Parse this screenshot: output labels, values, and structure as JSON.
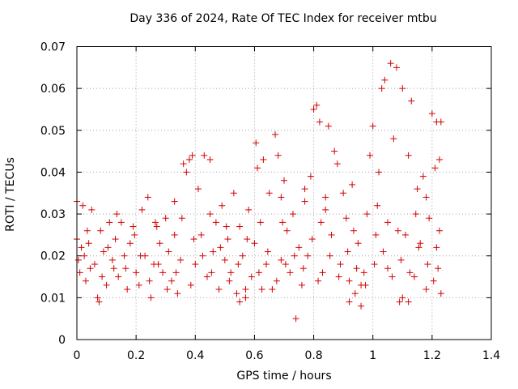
{
  "chart_data": {
    "type": "scatter",
    "title": "Day 336 of 2024, Rate Of TEC Index for receiver mtbu",
    "xlabel": "GPS time / hours",
    "ylabel": "ROTI / TECUs",
    "xlim": [
      0,
      1.4
    ],
    "ylim": [
      0,
      0.07
    ],
    "xticks": [
      "0",
      "0.2",
      "0.4",
      "0.6",
      "0.8",
      "1",
      "1.2",
      "1.4"
    ],
    "yticks": [
      "0",
      "0.01",
      "0.02",
      "0.03",
      "0.04",
      "0.05",
      "0.06",
      "0.07"
    ],
    "grid": true,
    "marker": "+",
    "color": "#d40000",
    "series": [
      {
        "name": "ROTI",
        "points": [
          [
            0.0,
            0.033
          ],
          [
            0.0,
            0.024
          ],
          [
            0.005,
            0.019
          ],
          [
            0.01,
            0.016
          ],
          [
            0.015,
            0.022
          ],
          [
            0.02,
            0.032
          ],
          [
            0.03,
            0.014
          ],
          [
            0.04,
            0.023
          ],
          [
            0.05,
            0.031
          ],
          [
            0.06,
            0.018
          ],
          [
            0.07,
            0.01
          ],
          [
            0.075,
            0.009
          ],
          [
            0.08,
            0.026
          ],
          [
            0.09,
            0.021
          ],
          [
            0.1,
            0.013
          ],
          [
            0.11,
            0.028
          ],
          [
            0.12,
            0.019
          ],
          [
            0.13,
            0.024
          ],
          [
            0.14,
            0.015
          ],
          [
            0.15,
            0.028
          ],
          [
            0.16,
            0.02
          ],
          [
            0.17,
            0.012
          ],
          [
            0.18,
            0.023
          ],
          [
            0.19,
            0.027
          ],
          [
            0.2,
            0.016
          ],
          [
            0.21,
            0.013
          ],
          [
            0.22,
            0.031
          ],
          [
            0.23,
            0.02
          ],
          [
            0.24,
            0.034
          ],
          [
            0.25,
            0.01
          ],
          [
            0.26,
            0.018
          ],
          [
            0.27,
            0.027
          ],
          [
            0.28,
            0.023
          ],
          [
            0.29,
            0.016
          ],
          [
            0.3,
            0.029
          ],
          [
            0.31,
            0.021
          ],
          [
            0.32,
            0.014
          ],
          [
            0.33,
            0.025
          ],
          [
            0.34,
            0.011
          ],
          [
            0.35,
            0.019
          ],
          [
            0.36,
            0.042
          ],
          [
            0.37,
            0.04
          ],
          [
            0.38,
            0.043
          ],
          [
            0.39,
            0.044
          ],
          [
            0.4,
            0.018
          ],
          [
            0.41,
            0.036
          ],
          [
            0.42,
            0.025
          ],
          [
            0.43,
            0.044
          ],
          [
            0.44,
            0.015
          ],
          [
            0.45,
            0.043
          ],
          [
            0.46,
            0.021
          ],
          [
            0.47,
            0.028
          ],
          [
            0.48,
            0.012
          ],
          [
            0.49,
            0.032
          ],
          [
            0.5,
            0.019
          ],
          [
            0.51,
            0.024
          ],
          [
            0.52,
            0.016
          ],
          [
            0.53,
            0.035
          ],
          [
            0.54,
            0.011
          ],
          [
            0.55,
            0.027
          ],
          [
            0.56,
            0.02
          ],
          [
            0.57,
            0.01
          ],
          [
            0.58,
            0.031
          ],
          [
            0.59,
            0.015
          ],
          [
            0.6,
            0.023
          ],
          [
            0.605,
            0.047
          ],
          [
            0.61,
            0.041
          ],
          [
            0.62,
            0.028
          ],
          [
            0.63,
            0.043
          ],
          [
            0.64,
            0.018
          ],
          [
            0.65,
            0.035
          ],
          [
            0.66,
            0.012
          ],
          [
            0.67,
            0.049
          ],
          [
            0.68,
            0.044
          ],
          [
            0.69,
            0.019
          ],
          [
            0.7,
            0.038
          ],
          [
            0.71,
            0.026
          ],
          [
            0.72,
            0.016
          ],
          [
            0.73,
            0.03
          ],
          [
            0.74,
            0.005
          ],
          [
            0.75,
            0.022
          ],
          [
            0.76,
            0.013
          ],
          [
            0.77,
            0.033
          ],
          [
            0.78,
            0.02
          ],
          [
            0.79,
            0.039
          ],
          [
            0.8,
            0.055
          ],
          [
            0.81,
            0.056
          ],
          [
            0.82,
            0.052
          ],
          [
            0.83,
            0.016
          ],
          [
            0.84,
            0.034
          ],
          [
            0.85,
            0.051
          ],
          [
            0.86,
            0.025
          ],
          [
            0.87,
            0.045
          ],
          [
            0.88,
            0.042
          ],
          [
            0.89,
            0.018
          ],
          [
            0.9,
            0.035
          ],
          [
            0.91,
            0.029
          ],
          [
            0.92,
            0.014
          ],
          [
            0.93,
            0.037
          ],
          [
            0.94,
            0.011
          ],
          [
            0.95,
            0.023
          ],
          [
            0.96,
            0.008
          ],
          [
            0.97,
            0.016
          ],
          [
            0.98,
            0.03
          ],
          [
            0.99,
            0.044
          ],
          [
            1.0,
            0.051
          ],
          [
            1.01,
            0.025
          ],
          [
            1.02,
            0.04
          ],
          [
            1.03,
            0.06
          ],
          [
            1.04,
            0.062
          ],
          [
            1.05,
            0.017
          ],
          [
            1.06,
            0.066
          ],
          [
            1.07,
            0.048
          ],
          [
            1.08,
            0.065
          ],
          [
            1.09,
            0.009
          ],
          [
            1.1,
            0.06
          ],
          [
            1.11,
            0.025
          ],
          [
            1.12,
            0.044
          ],
          [
            1.13,
            0.057
          ],
          [
            1.14,
            0.015
          ],
          [
            1.15,
            0.036
          ],
          [
            1.16,
            0.023
          ],
          [
            1.17,
            0.039
          ],
          [
            1.18,
            0.012
          ],
          [
            1.19,
            0.029
          ],
          [
            1.2,
            0.054
          ],
          [
            1.21,
            0.041
          ],
          [
            1.215,
            0.052
          ],
          [
            1.22,
            0.017
          ],
          [
            1.225,
            0.043
          ],
          [
            1.23,
            0.011
          ],
          [
            1.23,
            0.052
          ],
          [
            0.025,
            0.02
          ],
          [
            0.045,
            0.017
          ],
          [
            0.085,
            0.015
          ],
          [
            0.105,
            0.022
          ],
          [
            0.135,
            0.03
          ],
          [
            0.165,
            0.017
          ],
          [
            0.195,
            0.025
          ],
          [
            0.215,
            0.02
          ],
          [
            0.245,
            0.014
          ],
          [
            0.275,
            0.018
          ],
          [
            0.305,
            0.012
          ],
          [
            0.335,
            0.016
          ],
          [
            0.355,
            0.029
          ],
          [
            0.395,
            0.024
          ],
          [
            0.425,
            0.02
          ],
          [
            0.455,
            0.016
          ],
          [
            0.485,
            0.022
          ],
          [
            0.515,
            0.014
          ],
          [
            0.545,
            0.018
          ],
          [
            0.575,
            0.024
          ],
          [
            0.615,
            0.016
          ],
          [
            0.645,
            0.021
          ],
          [
            0.675,
            0.014
          ],
          [
            0.705,
            0.018
          ],
          [
            0.735,
            0.02
          ],
          [
            0.765,
            0.017
          ],
          [
            0.795,
            0.024
          ],
          [
            0.825,
            0.028
          ],
          [
            0.855,
            0.02
          ],
          [
            0.885,
            0.015
          ],
          [
            0.915,
            0.021
          ],
          [
            0.945,
            0.017
          ],
          [
            0.975,
            0.013
          ],
          [
            1.005,
            0.018
          ],
          [
            1.035,
            0.021
          ],
          [
            1.065,
            0.015
          ],
          [
            1.095,
            0.019
          ],
          [
            1.125,
            0.016
          ],
          [
            1.155,
            0.022
          ],
          [
            1.185,
            0.018
          ],
          [
            1.205,
            0.014
          ],
          [
            1.225,
            0.026
          ],
          [
            0.035,
            0.026
          ],
          [
            0.125,
            0.017
          ],
          [
            0.265,
            0.028
          ],
          [
            0.385,
            0.013
          ],
          [
            0.505,
            0.027
          ],
          [
            0.625,
            0.012
          ],
          [
            0.695,
            0.028
          ],
          [
            0.815,
            0.014
          ],
          [
            0.935,
            0.026
          ],
          [
            1.015,
            0.032
          ],
          [
            1.085,
            0.026
          ],
          [
            1.145,
            0.03
          ],
          [
            1.215,
            0.022
          ],
          [
            0.55,
            0.009
          ],
          [
            0.57,
            0.012
          ],
          [
            0.92,
            0.009
          ],
          [
            0.96,
            0.013
          ],
          [
            1.1,
            0.01
          ],
          [
            1.12,
            0.009
          ],
          [
            0.33,
            0.033
          ],
          [
            0.45,
            0.03
          ],
          [
            0.69,
            0.034
          ],
          [
            0.77,
            0.036
          ],
          [
            0.84,
            0.031
          ],
          [
            1.05,
            0.028
          ],
          [
            1.18,
            0.034
          ]
        ]
      }
    ]
  }
}
